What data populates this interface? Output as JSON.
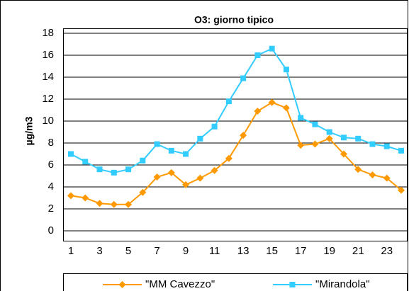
{
  "chart_data": {
    "type": "line",
    "title": "O3: giorno tipico",
    "y_label": "µg/m3",
    "categories": [
      1,
      null,
      3,
      null,
      5,
      null,
      7,
      null,
      9,
      null,
      11,
      null,
      13,
      null,
      15,
      null,
      17,
      null,
      19,
      null,
      21,
      null,
      23,
      null
    ],
    "series": [
      {
        "name": "\"MM Cavezzo\"",
        "color": "#ff9900",
        "marker": "diamond",
        "values": [
          3.2,
          3.0,
          2.5,
          2.4,
          2.4,
          3.5,
          4.9,
          5.3,
          4.2,
          4.8,
          5.5,
          6.6,
          8.7,
          10.9,
          11.7,
          11.2,
          7.8,
          7.9,
          8.4,
          7.0,
          5.6,
          5.1,
          4.8,
          3.7
        ]
      },
      {
        "name": "\"Mirandola\"",
        "color": "#33ccff",
        "marker": "square",
        "values": [
          7.0,
          6.3,
          5.6,
          5.3,
          5.6,
          6.4,
          7.9,
          7.3,
          7.0,
          8.4,
          9.5,
          11.8,
          13.9,
          16.0,
          16.6,
          14.7,
          10.3,
          9.7,
          9.0,
          8.5,
          8.4,
          7.9,
          7.7,
          7.3
        ]
      }
    ],
    "ylim": [
      0,
      18
    ],
    "yticks": [
      0,
      2,
      4,
      6,
      8,
      10,
      12,
      14,
      16,
      18
    ],
    "grid": true,
    "legend": "bottom"
  }
}
